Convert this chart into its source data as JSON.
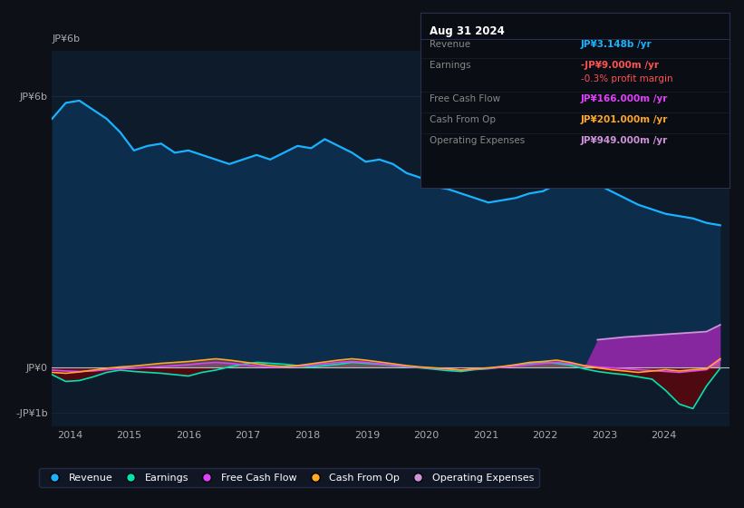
{
  "bg_color": "#0d1117",
  "plot_bg_color": "#0d1b2a",
  "ylabel_top": "JP¥6b",
  "ylabel_zero": "JP¥0",
  "ylabel_bottom": "-JP¥1b",
  "revenue_color": "#1ab2ff",
  "earnings_color": "#00e5b0",
  "fcf_color": "#e040fb",
  "cashfromop_color": "#ffa726",
  "opex_color": "#9c27b0",
  "opex_line_color": "#ce93d8",
  "info_box": {
    "date": "Aug 31 2024",
    "revenue_val": "JP¥3.148b",
    "revenue_color": "#1ab2ff",
    "earnings_val": "-JP¥9.000m",
    "earnings_color": "#ff5252",
    "margin_val": "-0.3%",
    "margin_color": "#ff5252",
    "fcf_val": "JP¥166.000m",
    "fcf_color": "#e040fb",
    "cashfromop_val": "JP¥201.000m",
    "cashfromop_color": "#ffa726",
    "opex_val": "JP¥949.000m",
    "opex_color": "#ce93d8"
  },
  "revenue": [
    5.5,
    5.85,
    5.9,
    5.7,
    5.5,
    5.2,
    4.8,
    4.9,
    4.95,
    4.75,
    4.8,
    4.7,
    4.6,
    4.5,
    4.6,
    4.7,
    4.6,
    4.75,
    4.9,
    4.85,
    5.05,
    4.9,
    4.75,
    4.55,
    4.6,
    4.5,
    4.3,
    4.2,
    4.0,
    3.95,
    3.85,
    3.75,
    3.65,
    3.7,
    3.75,
    3.85,
    3.9,
    4.05,
    4.1,
    4.05,
    4.05,
    3.9,
    3.75,
    3.6,
    3.5,
    3.4,
    3.35,
    3.3,
    3.2,
    3.148
  ],
  "earnings": [
    -0.15,
    -0.3,
    -0.28,
    -0.2,
    -0.1,
    -0.05,
    -0.08,
    -0.1,
    -0.12,
    -0.15,
    -0.18,
    -0.1,
    -0.05,
    0.02,
    0.08,
    0.12,
    0.1,
    0.08,
    0.05,
    0.02,
    0.05,
    0.08,
    0.12,
    0.1,
    0.08,
    0.05,
    0.02,
    0.0,
    -0.03,
    -0.06,
    -0.08,
    -0.04,
    -0.02,
    0.02,
    0.06,
    0.1,
    0.13,
    0.1,
    0.06,
    -0.02,
    -0.08,
    -0.12,
    -0.15,
    -0.2,
    -0.25,
    -0.5,
    -0.8,
    -0.9,
    -0.4,
    -0.009
  ],
  "fcf": [
    -0.05,
    -0.07,
    -0.08,
    -0.07,
    -0.04,
    -0.02,
    -0.01,
    0.01,
    0.03,
    0.05,
    0.07,
    0.1,
    0.12,
    0.1,
    0.07,
    0.04,
    0.02,
    0.02,
    0.04,
    0.06,
    0.09,
    0.12,
    0.14,
    0.12,
    0.09,
    0.06,
    0.03,
    0.01,
    -0.01,
    -0.03,
    -0.05,
    -0.03,
    -0.01,
    0.01,
    0.04,
    0.07,
    0.1,
    0.12,
    0.09,
    0.05,
    0.02,
    0.0,
    -0.02,
    -0.04,
    -0.06,
    -0.08,
    -0.1,
    -0.07,
    -0.04,
    0.166
  ],
  "cashfromop": [
    -0.1,
    -0.12,
    -0.09,
    -0.05,
    -0.01,
    0.02,
    0.04,
    0.07,
    0.1,
    0.12,
    0.14,
    0.17,
    0.2,
    0.17,
    0.13,
    0.09,
    0.05,
    0.03,
    0.05,
    0.09,
    0.13,
    0.17,
    0.2,
    0.17,
    0.13,
    0.09,
    0.05,
    0.02,
    0.0,
    -0.02,
    -0.05,
    -0.02,
    0.0,
    0.03,
    0.07,
    0.12,
    0.14,
    0.17,
    0.12,
    0.05,
    0.0,
    -0.04,
    -0.07,
    -0.1,
    -0.07,
    -0.04,
    -0.07,
    -0.04,
    -0.02,
    0.201
  ],
  "opex": [
    0.0,
    0.0,
    0.0,
    0.0,
    0.0,
    0.0,
    0.0,
    0.0,
    0.0,
    0.0,
    0.0,
    0.0,
    0.0,
    0.0,
    0.0,
    0.0,
    0.0,
    0.0,
    0.0,
    0.0,
    0.0,
    0.0,
    0.0,
    0.0,
    0.0,
    0.0,
    0.0,
    0.0,
    0.0,
    0.0,
    0.0,
    0.0,
    0.0,
    0.0,
    0.0,
    0.0,
    0.0,
    0.0,
    0.0,
    0.0,
    0.62,
    0.65,
    0.68,
    0.7,
    0.72,
    0.74,
    0.76,
    0.78,
    0.8,
    0.949
  ]
}
